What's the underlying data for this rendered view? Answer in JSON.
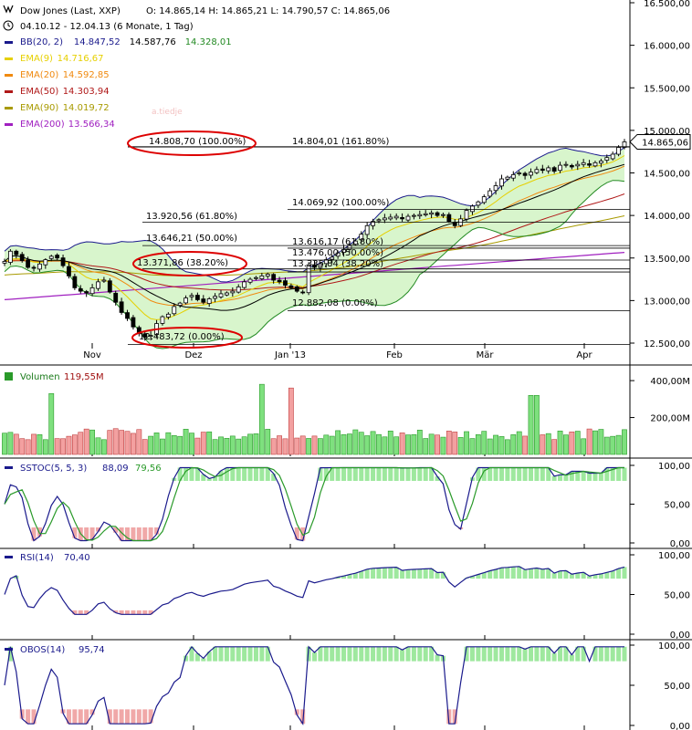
{
  "chart_data": [
    {
      "panel": "price",
      "type": "candlestick",
      "title": "Dow Jones (Last, XXP)",
      "ohlc_label": "O: 14.865,14  H: 14.865,21  L: 14.790,57  C: 14.865,06",
      "period": "04.10.12 - 12.04.13 (6 Monate, 1 Tag)",
      "watermark": "a.tiedje",
      "last_price": "14.865,06",
      "y_ticks": [
        "16.500,00",
        "16.000,00",
        "15.500,00",
        "15.000,00",
        "14.500,00",
        "14.000,00",
        "13.500,00",
        "13.000,00",
        "12.500,00"
      ],
      "y_tick_values": [
        16500,
        16000,
        15500,
        15000,
        14500,
        14000,
        13500,
        13000,
        12500
      ],
      "x_ticks": [
        "Nov",
        "Dez",
        "Jan '13",
        "Feb",
        "Mär",
        "Apr"
      ],
      "ylim": [
        12500,
        16500
      ],
      "legend": [
        {
          "name": "BB(20, 2)",
          "values": [
            "14.847,52",
            "14.587,76",
            "14.328,01"
          ],
          "color": "#1a1a8c"
        },
        {
          "name": "EMA(9)",
          "values": [
            "14.716,67"
          ],
          "color": "#e6d000"
        },
        {
          "name": "EMA(20)",
          "values": [
            "14.592,85"
          ],
          "color": "#f08a10"
        },
        {
          "name": "EMA(50)",
          "values": [
            "14.303,94"
          ],
          "color": "#b01818"
        },
        {
          "name": "EMA(90)",
          "values": [
            "14.019,72"
          ],
          "color": "#a89a00"
        },
        {
          "name": "EMA(200)",
          "values": [
            "13.566,34"
          ],
          "color": "#a020c0"
        }
      ],
      "fib_levels": [
        {
          "label": "14.808,70 (100.00%)",
          "value": 14808.7
        },
        {
          "label": "14.804,01 (161.80%)",
          "value": 14804.01
        },
        {
          "label": "14.069,92 (100.00%)",
          "value": 14069.92
        },
        {
          "label": "13.920,56 (61.80%)",
          "value": 13920.56
        },
        {
          "label": "13.646,21 (50.00%)",
          "value": 13646.21
        },
        {
          "label": "13.616,17 (61.80%)",
          "value": 13616.17
        },
        {
          "label": "13.476,00 (50.00%)",
          "value": 13476
        },
        {
          "label": "13.371,86 (38.20%)",
          "value": 13371.86
        },
        {
          "label": "13.335,84 (38.20%)",
          "value": 13335.84
        },
        {
          "label": "12.882,08 (0.00%)",
          "value": 12882.08
        },
        {
          "label": "12.483,72 (0.00%)",
          "value": 12483.72
        }
      ],
      "close_series": [
        13460,
        13580,
        13540,
        13470,
        13390,
        13380,
        13430,
        13480,
        13520,
        13500,
        13410,
        13290,
        13150,
        13110,
        13090,
        13150,
        13220,
        13240,
        13100,
        12980,
        12860,
        12790,
        12690,
        12620,
        12570,
        12590,
        12730,
        12810,
        12840,
        12930,
        12970,
        13030,
        13060,
        13010,
        12980,
        13020,
        13050,
        13080,
        13090,
        13110,
        13160,
        13220,
        13250,
        13270,
        13290,
        13310,
        13240,
        13220,
        13180,
        13150,
        13110,
        13090,
        13420,
        13390,
        13430,
        13480,
        13510,
        13560,
        13600,
        13650,
        13700,
        13780,
        13880,
        13930,
        13950,
        13970,
        13980,
        13990,
        13960,
        13990,
        14000,
        14010,
        14020,
        14030,
        14000,
        14010,
        13930,
        13880,
        13960,
        14060,
        14110,
        14160,
        14220,
        14290,
        14350,
        14430,
        14450,
        14480,
        14500,
        14470,
        14510,
        14540,
        14530,
        14560,
        14520,
        14590,
        14600,
        14570,
        14600,
        14620,
        14590,
        14620,
        14640,
        14680,
        14720,
        14800,
        14865
      ]
    },
    {
      "panel": "volume",
      "type": "bar",
      "title": "Volumen",
      "value": "119,55M",
      "y_ticks": [
        "400,00M",
        "200,00M"
      ],
      "y_tick_values": [
        400,
        200
      ],
      "ylim": [
        0,
        450
      ],
      "spike_values": [
        330,
        380,
        360,
        320
      ]
    },
    {
      "panel": "sstoc",
      "type": "line",
      "title": "SSTOC(5, 5, 3)",
      "values": [
        "88,09",
        "79,56"
      ],
      "y_ticks": [
        "100,00",
        "50,00",
        "0,00"
      ],
      "y_tick_values": [
        100,
        50,
        0
      ],
      "ylim": [
        0,
        100
      ]
    },
    {
      "panel": "rsi",
      "type": "line",
      "title": "RSI(14)",
      "values": [
        "70,40"
      ],
      "y_ticks": [
        "100,00",
        "50,00",
        "0,00"
      ],
      "y_tick_values": [
        100,
        50,
        0
      ],
      "ylim": [
        0,
        100
      ]
    },
    {
      "panel": "obos",
      "type": "line",
      "title": "OBOS(14)",
      "values": [
        "95,74"
      ],
      "y_ticks": [
        "100,00",
        "50,00",
        "0,00"
      ],
      "y_tick_values": [
        100,
        50,
        0
      ],
      "ylim": [
        0,
        100
      ]
    }
  ]
}
